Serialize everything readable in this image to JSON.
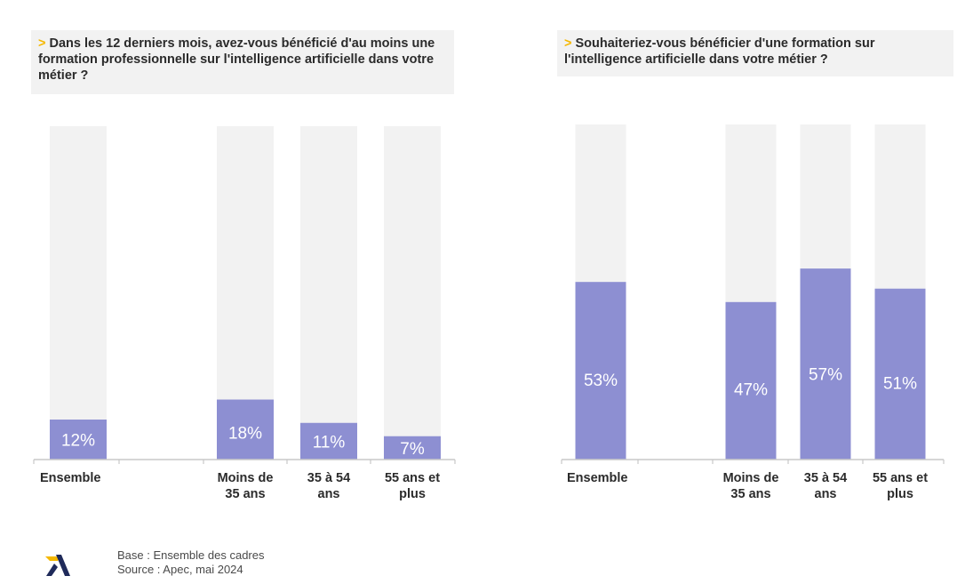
{
  "colors": {
    "bar": "#8d8fd2",
    "track": "#f2f2f2",
    "axis": "#c8c8c8",
    "accent": "#f5b800",
    "logo_yellow": "#f5b800",
    "logo_navy": "#1f2a5a"
  },
  "questions": [
    {
      "marker": ">",
      "text": "Dans les 12 derniers mois, avez-vous bénéficié d'au moins une formation professionnelle sur l'intelligence artificielle dans votre métier ?"
    },
    {
      "marker": ">",
      "text": "Souhaiteriez-vous bénéficier d'une formation sur l'intelligence artificielle dans votre métier ?"
    }
  ],
  "chart_data": [
    {
      "type": "bar",
      "title": "Dans les 12 derniers mois, avez-vous bénéficié d'au moins une formation professionnelle sur l'intelligence artificielle dans votre métier ?",
      "categories": [
        "Ensemble",
        "Moins de 35 ans",
        "35 à 54 ans",
        "55 ans et plus"
      ],
      "category_lines": [
        [
          "Ensemble"
        ],
        [
          "Moins de",
          "35 ans"
        ],
        [
          "35 à 54",
          "ans"
        ],
        [
          "55 ans et",
          "plus"
        ]
      ],
      "values": [
        12,
        18,
        11,
        7
      ],
      "value_labels": [
        "12%",
        "18%",
        "11%",
        "7%"
      ],
      "ylim": [
        0,
        100
      ],
      "grid": false
    },
    {
      "type": "bar",
      "title": "Souhaiteriez-vous bénéficier d'une formation sur l'intelligence artificielle dans votre métier ?",
      "categories": [
        "Ensemble",
        "Moins de 35 ans",
        "35 à 54 ans",
        "55 ans et plus"
      ],
      "category_lines": [
        [
          "Ensemble"
        ],
        [
          "Moins de",
          "35 ans"
        ],
        [
          "35 à 54",
          "ans"
        ],
        [
          "55 ans et",
          "plus"
        ]
      ],
      "values": [
        53,
        47,
        57,
        51
      ],
      "value_labels": [
        "53%",
        "47%",
        "57%",
        "51%"
      ],
      "ylim": [
        0,
        100
      ],
      "grid": false
    }
  ],
  "footer": {
    "base": "Base : Ensemble des cadres",
    "source": "Source : Apec, mai 2024"
  },
  "logo": {
    "icon": "apec-logo-icon"
  }
}
